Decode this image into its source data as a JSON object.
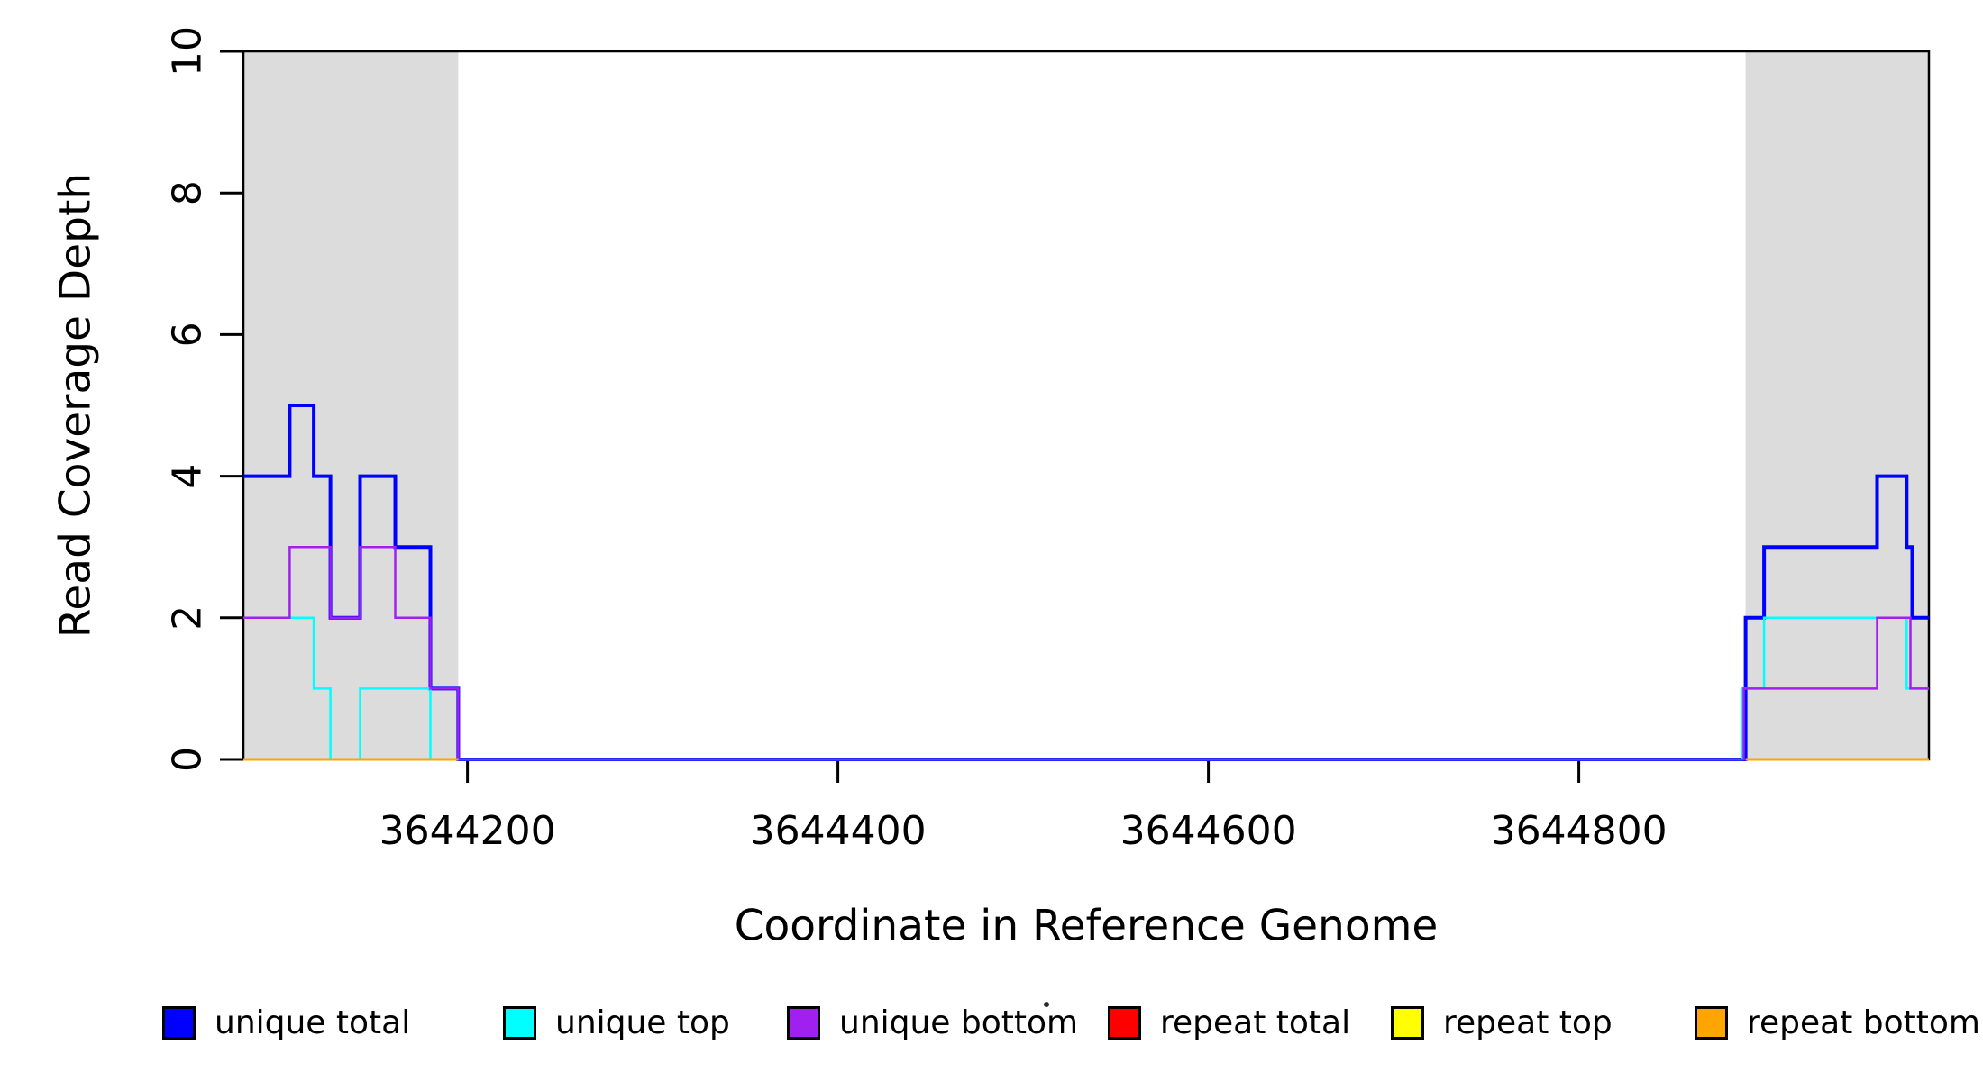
{
  "chart_data": {
    "type": "line",
    "step": true,
    "title": "",
    "xlabel": "Coordinate in Reference Genome",
    "ylabel": "Read Coverage Depth",
    "xlim": [
      3644079,
      3644989
    ],
    "ylim": [
      0,
      10
    ],
    "x_ticks": [
      3644200,
      3644400,
      3644600,
      3644800
    ],
    "y_ticks": [
      0,
      2,
      4,
      6,
      8,
      10
    ],
    "grid": false,
    "axis_color": "#000000",
    "background_color": "#ffffff",
    "legend_position": "bottom",
    "shaded_regions": {
      "color": "#dcdcdc",
      "ranges": [
        [
          3644079,
          3644195
        ],
        [
          3644890,
          3644989
        ]
      ]
    },
    "series": [
      {
        "id": "unique-total",
        "name": "unique total",
        "color": "#0000ff",
        "line_width": 4,
        "runs": [
          [
            [
              3644079,
              4
            ],
            [
              3644104,
              5
            ],
            [
              3644117,
              4
            ],
            [
              3644126,
              2
            ],
            [
              3644142,
              4
            ],
            [
              3644161,
              3
            ],
            [
              3644180,
              1
            ],
            [
              3644195,
              0
            ],
            [
              3644890,
              2
            ],
            [
              3644900,
              3
            ],
            [
              3644961,
              4
            ],
            [
              3644977,
              3
            ],
            [
              3644980,
              2
            ],
            [
              3644989,
              2
            ]
          ]
        ]
      },
      {
        "id": "unique-top",
        "name": "unique top",
        "color": "#00ffff",
        "line_width": 2.5,
        "runs": [
          [
            [
              3644079,
              2
            ],
            [
              3644117,
              1
            ],
            [
              3644126,
              0
            ],
            [
              3644142,
              1
            ],
            [
              3644180,
              0
            ],
            [
              3644888,
              1
            ],
            [
              3644900,
              2
            ],
            [
              3644977,
              1
            ],
            [
              3644989,
              1
            ]
          ]
        ]
      },
      {
        "id": "unique-bottom",
        "name": "unique bottom",
        "color": "#a020f0",
        "line_width": 2.5,
        "runs": [
          [
            [
              3644079,
              2
            ],
            [
              3644104,
              3
            ],
            [
              3644126,
              2
            ],
            [
              3644142,
              3
            ],
            [
              3644161,
              2
            ],
            [
              3644180,
              1
            ],
            [
              3644195,
              0
            ],
            [
              3644889,
              1
            ],
            [
              3644961,
              2
            ],
            [
              3644979,
              1
            ],
            [
              3644989,
              1
            ]
          ]
        ]
      },
      {
        "id": "repeat-total",
        "name": "repeat total",
        "color": "#ff0000",
        "line_width": 2.5,
        "runs": [
          [
            [
              3644079,
              0
            ],
            [
              3644195,
              0
            ]
          ],
          [
            [
              3644890,
              0
            ],
            [
              3644989,
              0
            ]
          ]
        ]
      },
      {
        "id": "repeat-top",
        "name": "repeat top",
        "color": "#ffff00",
        "line_width": 2.5,
        "runs": [
          [
            [
              3644079,
              0
            ],
            [
              3644195,
              0
            ]
          ],
          [
            [
              3644890,
              0
            ],
            [
              3644989,
              0
            ]
          ]
        ]
      },
      {
        "id": "repeat-bottom",
        "name": "repeat bottom",
        "color": "#ffa500",
        "line_width": 3,
        "runs": [
          [
            [
              3644079,
              0
            ],
            [
              3644195,
              0
            ]
          ],
          [
            [
              3644890,
              0
            ],
            [
              3644989,
              0
            ]
          ]
        ]
      }
    ]
  }
}
